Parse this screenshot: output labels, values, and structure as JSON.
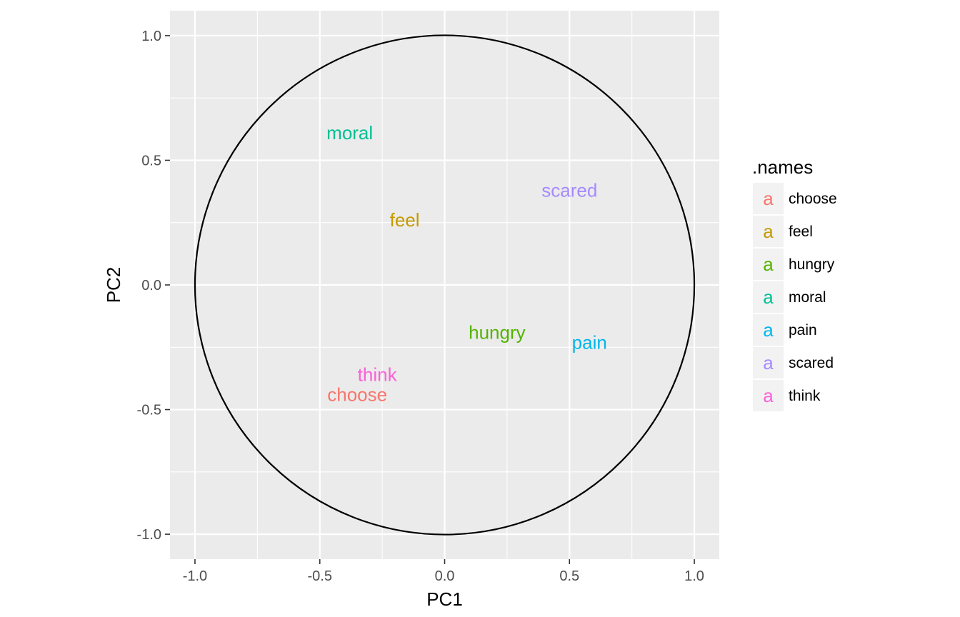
{
  "chart_data": {
    "type": "scatter",
    "title": "",
    "xlabel": "PC1",
    "ylabel": "PC2",
    "xlim": [
      -1.1,
      1.1
    ],
    "ylim": [
      -1.1,
      1.1
    ],
    "x_ticks": [
      -1.0,
      -0.5,
      0.0,
      0.5,
      1.0
    ],
    "y_ticks": [
      -1.0,
      -0.5,
      0.0,
      0.5,
      1.0
    ],
    "x_tick_labels": [
      "-1.0",
      "-0.5",
      "0.0",
      "0.5",
      "1.0"
    ],
    "y_tick_labels": [
      "-1.0",
      "-0.5",
      "0.0",
      "0.5",
      "1.0"
    ],
    "grid": true,
    "circle": {
      "center": [
        0,
        0
      ],
      "radius": 1
    },
    "legend": {
      "title": ".names",
      "position": "right",
      "key_glyph": "a"
    },
    "points": [
      {
        "label": "choose",
        "x": -0.35,
        "y": -0.44,
        "color": "#F8766D"
      },
      {
        "label": "feel",
        "x": -0.16,
        "y": 0.26,
        "color": "#C49A00"
      },
      {
        "label": "hungry",
        "x": 0.21,
        "y": -0.19,
        "color": "#53B400"
      },
      {
        "label": "moral",
        "x": -0.38,
        "y": 0.61,
        "color": "#00C094"
      },
      {
        "label": "pain",
        "x": 0.58,
        "y": -0.23,
        "color": "#00B6EB"
      },
      {
        "label": "scared",
        "x": 0.5,
        "y": 0.38,
        "color": "#A58AFF"
      },
      {
        "label": "think",
        "x": -0.27,
        "y": -0.36,
        "color": "#FB61D7"
      }
    ]
  }
}
